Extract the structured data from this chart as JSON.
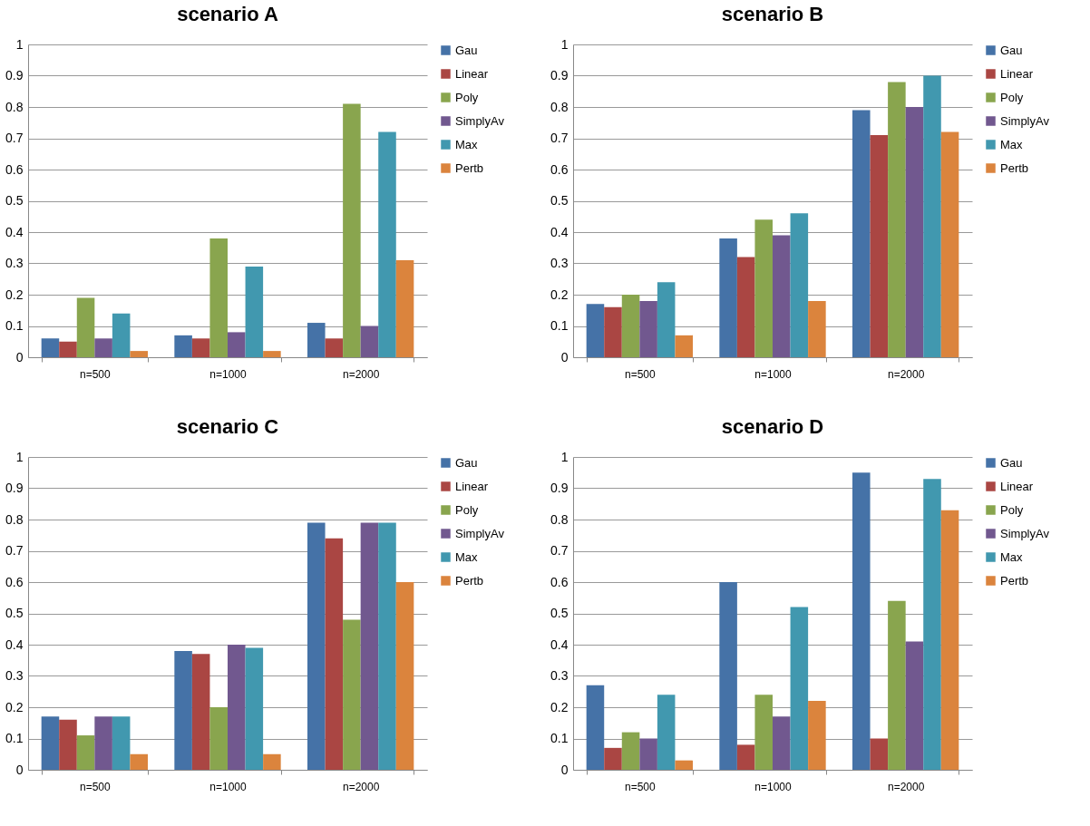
{
  "chart_data": [
    {
      "type": "bar",
      "title": "scenario A",
      "categories": [
        "n=500",
        "n=1000",
        "n=2000"
      ],
      "ylim": [
        0,
        1
      ],
      "yticks": [
        0,
        0.1,
        0.2,
        0.3,
        0.4,
        0.5,
        0.6,
        0.7,
        0.8,
        0.9,
        1
      ],
      "grid": "y",
      "legend": "right",
      "series": [
        {
          "name": "Gau",
          "color": "#4572a7",
          "values": [
            0.06,
            0.07,
            0.11
          ]
        },
        {
          "name": "Linear",
          "color": "#aa4643",
          "values": [
            0.05,
            0.06,
            0.06
          ]
        },
        {
          "name": "Poly",
          "color": "#89a54e",
          "values": [
            0.19,
            0.38,
            0.81
          ]
        },
        {
          "name": "SimplyAv",
          "color": "#71588f",
          "values": [
            0.06,
            0.08,
            0.1
          ]
        },
        {
          "name": "Max",
          "color": "#4198af",
          "values": [
            0.14,
            0.29,
            0.72
          ]
        },
        {
          "name": "Pertb",
          "color": "#db843d",
          "values": [
            0.02,
            0.02,
            0.31
          ]
        }
      ]
    },
    {
      "type": "bar",
      "title": "scenario B",
      "categories": [
        "n=500",
        "n=1000",
        "n=2000"
      ],
      "ylim": [
        0,
        1
      ],
      "yticks": [
        0,
        0.1,
        0.2,
        0.3,
        0.4,
        0.5,
        0.6,
        0.7,
        0.8,
        0.9,
        1
      ],
      "grid": "y",
      "legend": "right",
      "series": [
        {
          "name": "Gau",
          "color": "#4572a7",
          "values": [
            0.17,
            0.38,
            0.79
          ]
        },
        {
          "name": "Linear",
          "color": "#aa4643",
          "values": [
            0.16,
            0.32,
            0.71
          ]
        },
        {
          "name": "Poly",
          "color": "#89a54e",
          "values": [
            0.2,
            0.44,
            0.88
          ]
        },
        {
          "name": "SimplyAv",
          "color": "#71588f",
          "values": [
            0.18,
            0.39,
            0.8
          ]
        },
        {
          "name": "Max",
          "color": "#4198af",
          "values": [
            0.24,
            0.46,
            0.9
          ]
        },
        {
          "name": "Pertb",
          "color": "#db843d",
          "values": [
            0.07,
            0.18,
            0.72
          ]
        }
      ]
    },
    {
      "type": "bar",
      "title": "scenario C",
      "categories": [
        "n=500",
        "n=1000",
        "n=2000"
      ],
      "ylim": [
        0,
        1
      ],
      "yticks": [
        0,
        0.1,
        0.2,
        0.3,
        0.4,
        0.5,
        0.6,
        0.7,
        0.8,
        0.9,
        1
      ],
      "grid": "y",
      "legend": "right",
      "series": [
        {
          "name": "Gau",
          "color": "#4572a7",
          "values": [
            0.17,
            0.38,
            0.79
          ]
        },
        {
          "name": "Linear",
          "color": "#aa4643",
          "values": [
            0.16,
            0.37,
            0.74
          ]
        },
        {
          "name": "Poly",
          "color": "#89a54e",
          "values": [
            0.11,
            0.2,
            0.48
          ]
        },
        {
          "name": "SimplyAv",
          "color": "#71588f",
          "values": [
            0.17,
            0.4,
            0.79
          ]
        },
        {
          "name": "Max",
          "color": "#4198af",
          "values": [
            0.17,
            0.39,
            0.79
          ]
        },
        {
          "name": "Pertb",
          "color": "#db843d",
          "values": [
            0.05,
            0.05,
            0.6
          ]
        }
      ]
    },
    {
      "type": "bar",
      "title": "scenario D",
      "categories": [
        "n=500",
        "n=1000",
        "n=2000"
      ],
      "ylim": [
        0,
        1
      ],
      "yticks": [
        0,
        0.1,
        0.2,
        0.3,
        0.4,
        0.5,
        0.6,
        0.7,
        0.8,
        0.9,
        1
      ],
      "grid": "y",
      "legend": "right",
      "series": [
        {
          "name": "Gau",
          "color": "#4572a7",
          "values": [
            0.27,
            0.6,
            0.95
          ]
        },
        {
          "name": "Linear",
          "color": "#aa4643",
          "values": [
            0.07,
            0.08,
            0.1
          ]
        },
        {
          "name": "Poly",
          "color": "#89a54e",
          "values": [
            0.12,
            0.24,
            0.54
          ]
        },
        {
          "name": "SimplyAv",
          "color": "#71588f",
          "values": [
            0.1,
            0.17,
            0.41
          ]
        },
        {
          "name": "Max",
          "color": "#4198af",
          "values": [
            0.24,
            0.52,
            0.93
          ]
        },
        {
          "name": "Pertb",
          "color": "#db843d",
          "values": [
            0.03,
            0.22,
            0.83
          ]
        }
      ]
    }
  ]
}
